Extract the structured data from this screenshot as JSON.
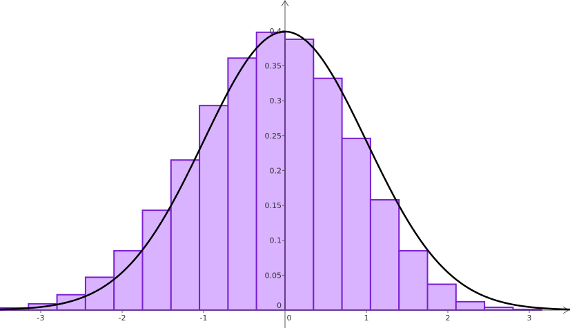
{
  "chart_data": {
    "type": "bar",
    "title": "",
    "xlabel": "",
    "ylabel": "",
    "xlim": [
      -3.5,
      3.5
    ],
    "ylim": [
      0,
      0.44
    ],
    "grid": false,
    "bin_edges": [
      -3.5,
      -3.15,
      -2.8,
      -2.45,
      -2.1,
      -1.75,
      -1.4,
      -1.05,
      -0.7,
      -0.35,
      0.0,
      0.35,
      0.7,
      1.05,
      1.4,
      1.75,
      2.1,
      2.45,
      2.8,
      3.15,
      3.5
    ],
    "bar_heights": [
      0.003,
      0.009,
      0.022,
      0.047,
      0.085,
      0.143,
      0.215,
      0.293,
      0.361,
      0.398,
      0.388,
      0.332,
      0.246,
      0.158,
      0.085,
      0.037,
      0.012,
      0.004,
      0.001,
      0.0
    ],
    "curve": {
      "type": "normal_pdf",
      "mean": 0,
      "sd": 1
    },
    "x_ticks": [
      "-3",
      "-2",
      "-1",
      "0",
      "1",
      "2",
      "3"
    ],
    "y_ticks": [
      "0",
      "0.05",
      "0.1",
      "0.15",
      "0.2",
      "0.25",
      "0.3",
      "0.35",
      "0.4"
    ],
    "colors": {
      "bar_fill": "#d9b3ff",
      "bar_stroke": "#7a1fd1",
      "curve": "#000000",
      "axis": "#555555",
      "label": "#333333"
    }
  }
}
